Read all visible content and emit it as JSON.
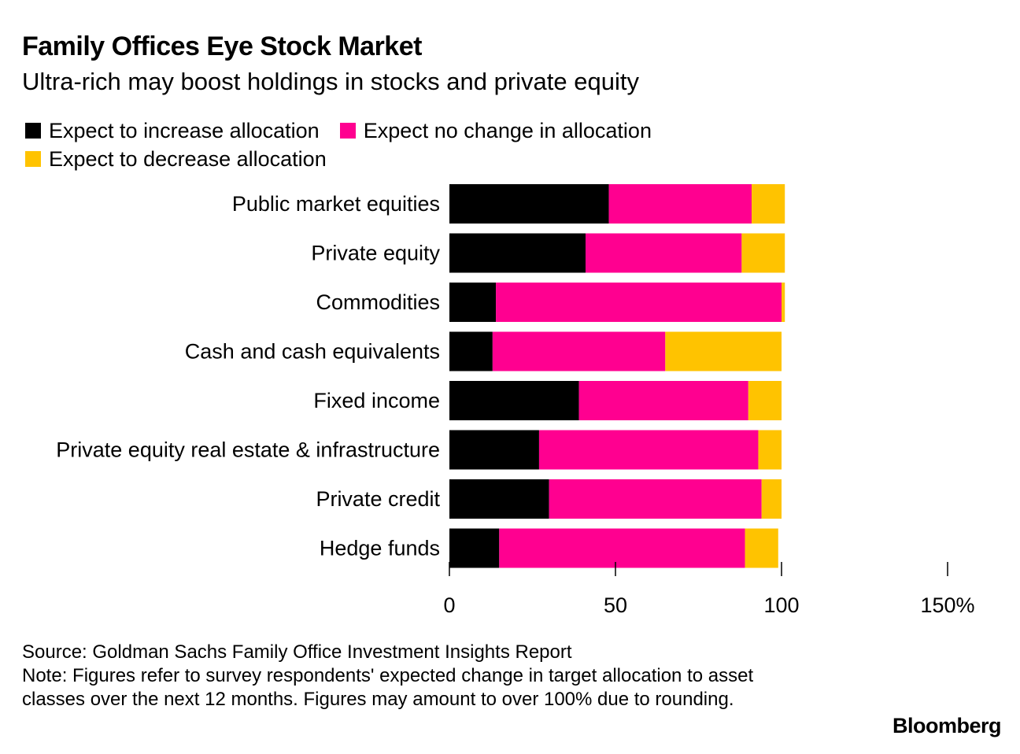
{
  "title": "Family Offices Eye Stock Market",
  "subtitle": "Ultra-rich may boost holdings in stocks and private equity",
  "colors": {
    "increase": "#000000",
    "no_change": "#ff0090",
    "decrease": "#ffc300"
  },
  "chart_data": {
    "type": "bar",
    "orientation": "horizontal",
    "stacked": true,
    "title": "Family Offices Eye Stock Market",
    "categories": [
      "Public market equities",
      "Private equity",
      "Commodities",
      "Cash and cash equivalents",
      "Fixed income",
      "Private equity real estate & infrastructure",
      "Private credit",
      "Hedge funds"
    ],
    "series": [
      {
        "name": "Expect to increase allocation",
        "values": [
          48,
          41,
          14,
          13,
          39,
          27,
          30,
          15
        ]
      },
      {
        "name": "Expect no change in allocation",
        "values": [
          43,
          47,
          86,
          52,
          51,
          66,
          64,
          74
        ]
      },
      {
        "name": "Expect to decrease allocation",
        "values": [
          10,
          13,
          1,
          35,
          10,
          7,
          6,
          10
        ]
      }
    ],
    "xlim": [
      0,
      150
    ],
    "ticks": [
      0,
      50,
      100,
      150
    ],
    "tick_labels": [
      "0",
      "50",
      "100",
      "150%"
    ],
    "xlabel": "",
    "ylabel": "",
    "legend_position": "top-left"
  },
  "footer": {
    "source": "Source: Goldman Sachs Family Office Investment Insights Report",
    "note": "Note: Figures refer to survey respondents' expected change in target allocation to asset classes over the next 12 months. Figures may amount to over 100% due to rounding."
  },
  "brand": "Bloomberg"
}
